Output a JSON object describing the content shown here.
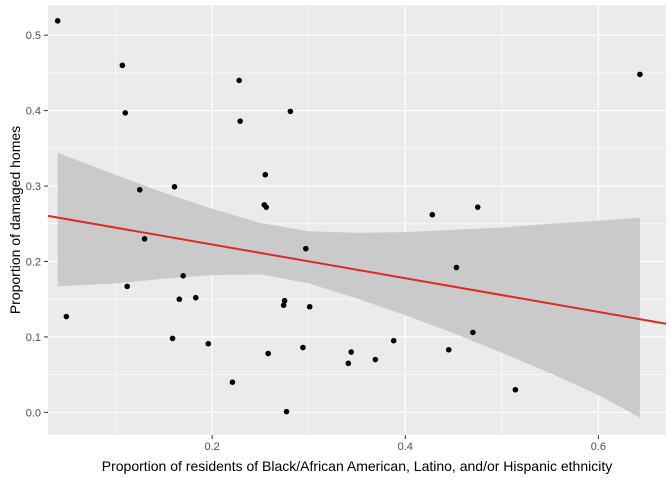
{
  "chart_data": {
    "type": "scatter",
    "title": "",
    "xlabel": "Proportion of residents of Black/African American, Latino, and/or Hispanic ethnicity",
    "ylabel": "Proportion of damaged homes",
    "xlim": [
      0.03,
      0.67
    ],
    "ylim": [
      -0.03,
      0.54
    ],
    "x_ticks": [
      0.2,
      0.4,
      0.6
    ],
    "x_tick_labels": [
      "0.2",
      "0.4",
      "0.6"
    ],
    "y_ticks": [
      0.0,
      0.1,
      0.2,
      0.3,
      0.4,
      0.5
    ],
    "y_tick_labels": [
      "0.0",
      "0.1",
      "0.2",
      "0.3",
      "0.4",
      "0.5"
    ],
    "grid": true,
    "legend": "none",
    "colors": {
      "panel": "#ebebeb",
      "grid_major": "#ffffff",
      "points": "#000000",
      "fit_line": "#dd2b22",
      "confidence_band": "#c4c4c4"
    },
    "points": {
      "x": [
        0.04,
        0.049,
        0.107,
        0.11,
        0.112,
        0.125,
        0.13,
        0.159,
        0.161,
        0.166,
        0.17,
        0.183,
        0.196,
        0.221,
        0.228,
        0.229,
        0.254,
        0.255,
        0.256,
        0.258,
        0.274,
        0.275,
        0.277,
        0.281,
        0.294,
        0.297,
        0.301,
        0.341,
        0.344,
        0.369,
        0.388,
        0.428,
        0.445,
        0.453,
        0.47,
        0.475,
        0.514,
        0.643
      ],
      "y": [
        0.519,
        0.127,
        0.46,
        0.397,
        0.167,
        0.295,
        0.23,
        0.098,
        0.299,
        0.15,
        0.181,
        0.152,
        0.091,
        0.04,
        0.44,
        0.386,
        0.275,
        0.315,
        0.272,
        0.078,
        0.142,
        0.148,
        0.001,
        0.399,
        0.086,
        0.217,
        0.14,
        0.065,
        0.08,
        0.07,
        0.095,
        0.262,
        0.083,
        0.192,
        0.106,
        0.272,
        0.03,
        0.448
      ]
    },
    "fit_line": {
      "x": [
        0.03,
        0.67
      ],
      "y": [
        0.2605,
        0.1175
      ]
    },
    "confidence_band": {
      "x": [
        0.04,
        0.1,
        0.15,
        0.2,
        0.25,
        0.3,
        0.35,
        0.4,
        0.45,
        0.5,
        0.55,
        0.6,
        0.643
      ],
      "upper": [
        0.344,
        0.315,
        0.291,
        0.27,
        0.251,
        0.24,
        0.238,
        0.239,
        0.242,
        0.245,
        0.25,
        0.254,
        0.258
      ],
      "lower": [
        0.167,
        0.171,
        0.177,
        0.182,
        0.183,
        0.171,
        0.151,
        0.129,
        0.105,
        0.079,
        0.052,
        0.023,
        -0.007
      ]
    }
  }
}
